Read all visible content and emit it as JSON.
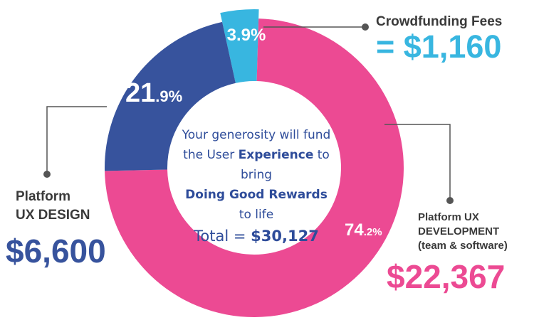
{
  "colors": {
    "development": "#ec4a93",
    "design": "#37539d",
    "fees": "#38b6e0",
    "text_blue": "#2e4c9a",
    "label_dark": "#3a3a3a",
    "connector": "#555555"
  },
  "chart_data": {
    "type": "pie",
    "variant": "donut",
    "slices": [
      {
        "name": "Crowdfunding Fees",
        "percent": 3.9,
        "amount": "$1,160",
        "color": "#38b6e0"
      },
      {
        "name": "Platform UX DEVELOPMENT (team & software)",
        "percent": 74.2,
        "amount": "$22,367",
        "color": "#ec4a93"
      },
      {
        "name": "Platform UX DESIGN",
        "percent": 21.9,
        "amount": "$6,600",
        "color": "#37539d"
      }
    ]
  },
  "slice_labels": {
    "fees_pct": "3.9%",
    "design_pct_main": "21",
    "design_pct_dec": ".9%",
    "development_pct_main": "74",
    "development_pct_dec": ".2%"
  },
  "center": {
    "line1": "Your generosity will fund",
    "line2_prefix": "the User ",
    "line2_bold": "Experience",
    "line2_suffix": " to bring",
    "line3": "Doing Good Rewards",
    "line4": "to life",
    "total_prefix": "Total = ",
    "total_value": "$30,127"
  },
  "labels": {
    "fees_title": "Crowdfunding Fees",
    "fees_amount": "= $1,160",
    "design_title_1": "Platform",
    "design_title_2": "UX DESIGN",
    "design_amount": "$6,600",
    "development_title_1": "Platform UX",
    "development_title_2": "DEVELOPMENT",
    "development_title_3": "(team & software)",
    "development_amount": "$22,367"
  }
}
